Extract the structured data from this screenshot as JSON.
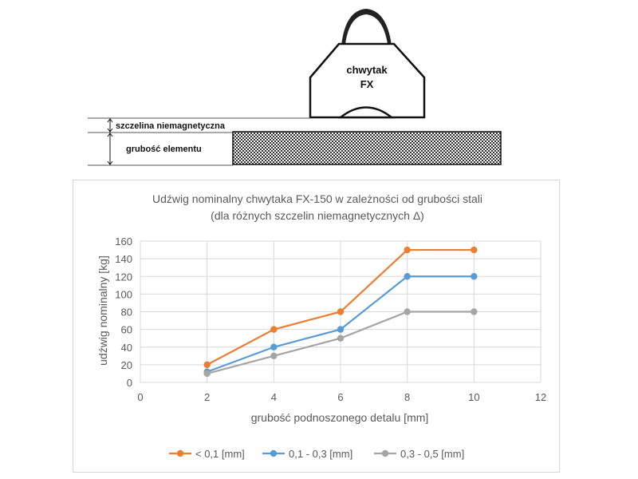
{
  "diagram": {
    "gripper_label_line1": "chwytak",
    "gripper_label_line2": "FX",
    "gap_label": "szczelina niemagnetyczna",
    "thickness_label": "grubość elementu"
  },
  "chart_data": {
    "type": "line",
    "title_line1": "Udźwig nominalny chwytaka FX-150 w zależności od grubości stali",
    "title_line2": "(dla różnych szczelin niemagnetycznych Δ)",
    "xlabel": "grubość podnoszonego detalu [mm]",
    "ylabel": "udźwig nominalny [kg]",
    "xlim": [
      0,
      12
    ],
    "ylim": [
      0,
      160
    ],
    "x_ticks": [
      0,
      2,
      4,
      6,
      8,
      10,
      12
    ],
    "y_ticks": [
      0,
      20,
      40,
      60,
      80,
      100,
      120,
      140,
      160
    ],
    "grid": true,
    "legend_position": "bottom",
    "series": [
      {
        "name": "< 0,1 [mm]",
        "color": "#ED7D31",
        "x": [
          2,
          4,
          6,
          8,
          10
        ],
        "y": [
          20,
          60,
          80,
          150,
          150
        ]
      },
      {
        "name": "0,1 - 0,3 [mm]",
        "color": "#5B9BD5",
        "x": [
          2,
          4,
          6,
          8,
          10
        ],
        "y": [
          12,
          40,
          60,
          120,
          120
        ]
      },
      {
        "name": "0,3 - 0,5 [mm]",
        "color": "#A5A5A5",
        "x": [
          2,
          4,
          6,
          8,
          10
        ],
        "y": [
          10,
          30,
          50,
          80,
          80
        ]
      }
    ]
  }
}
